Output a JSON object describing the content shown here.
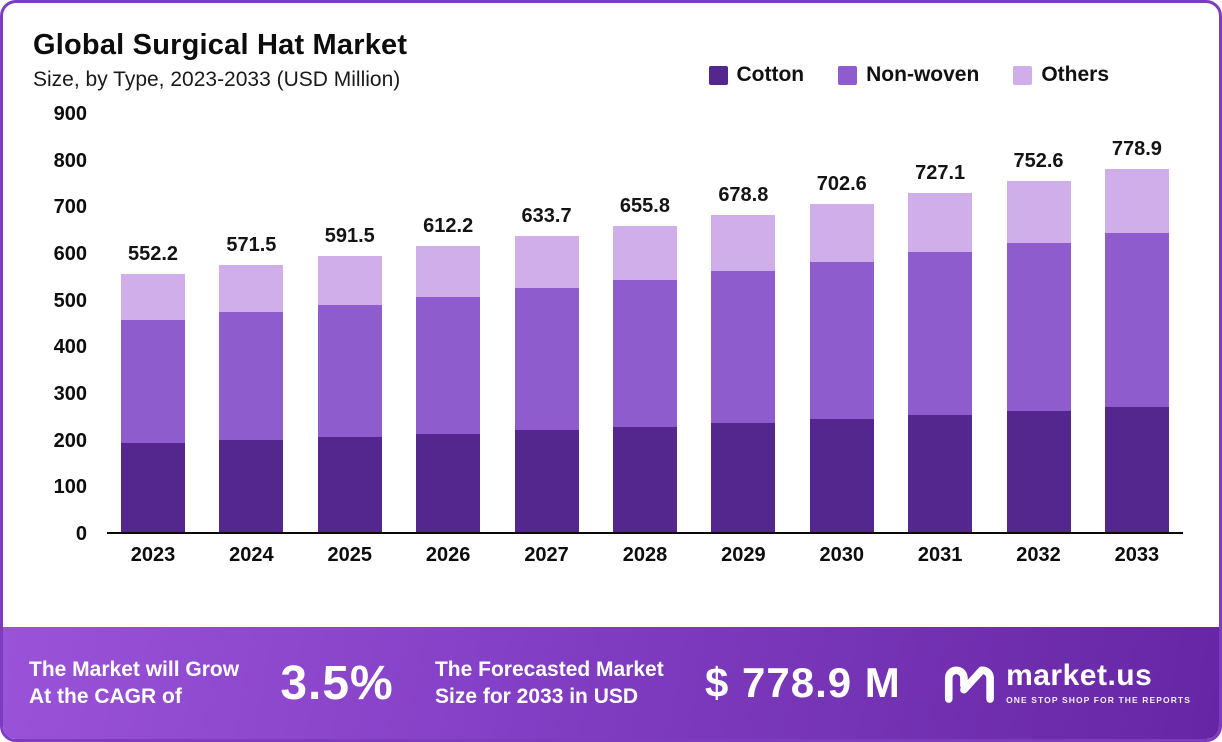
{
  "header": {
    "title": "Global Surgical Hat Market",
    "subtitle": "Size, by Type, 2023-2033 (USD Million)"
  },
  "legend": [
    {
      "label": "Cotton",
      "color": "#53278e"
    },
    {
      "label": "Non-woven",
      "color": "#8f5ccd"
    },
    {
      "label": "Others",
      "color": "#cfaeea"
    }
  ],
  "chart_data": {
    "type": "bar",
    "stacked": true,
    "title": "Global Surgical Hat Market",
    "subtitle": "Size, by Type, 2023-2033 (USD Million)",
    "categories": [
      "2023",
      "2024",
      "2025",
      "2026",
      "2027",
      "2028",
      "2029",
      "2030",
      "2031",
      "2032",
      "2033"
    ],
    "series": [
      {
        "name": "Cotton",
        "color": "#53278e",
        "values": [
          190.0,
          196.6,
          203.5,
          210.6,
          218.0,
          225.6,
          233.5,
          241.7,
          250.2,
          258.9,
          268.0
        ]
      },
      {
        "name": "Non-woven",
        "color": "#8f5ccd",
        "values": [
          265.0,
          274.3,
          283.9,
          293.8,
          304.1,
          314.7,
          325.8,
          337.2,
          349.0,
          361.2,
          373.8
        ]
      },
      {
        "name": "Others",
        "color": "#cfaeea",
        "values": [
          97.2,
          100.6,
          104.1,
          107.8,
          111.6,
          115.5,
          119.5,
          123.7,
          127.9,
          132.5,
          137.1
        ]
      }
    ],
    "totals": [
      552.2,
      571.5,
      591.5,
      612.2,
      633.7,
      655.8,
      678.8,
      702.6,
      727.1,
      752.6,
      778.9
    ],
    "xlabel": "",
    "ylabel": "",
    "ylim": [
      0,
      900
    ],
    "yticks": [
      0,
      100,
      200,
      300,
      400,
      500,
      600,
      700,
      800,
      900
    ],
    "grid": false,
    "legend_position": "top-right",
    "units": "USD Million"
  },
  "footer": {
    "left_line1": "The Market will Grow",
    "left_line2": "At the CAGR of",
    "cagr": "3.5%",
    "mid_line1": "The Forecasted Market",
    "mid_line2": "Size for 2033 in USD",
    "forecast": "$ 778.9 M",
    "brand": "market.us",
    "brand_tagline": "ONE STOP SHOP FOR THE REPORTS"
  },
  "colors": {
    "border": "#7d3bc0",
    "banner_gradient_start": "#9a53d8",
    "banner_gradient_end": "#6626a4",
    "axis_line": "#0a0a0a",
    "text": "#0d0d0d"
  }
}
